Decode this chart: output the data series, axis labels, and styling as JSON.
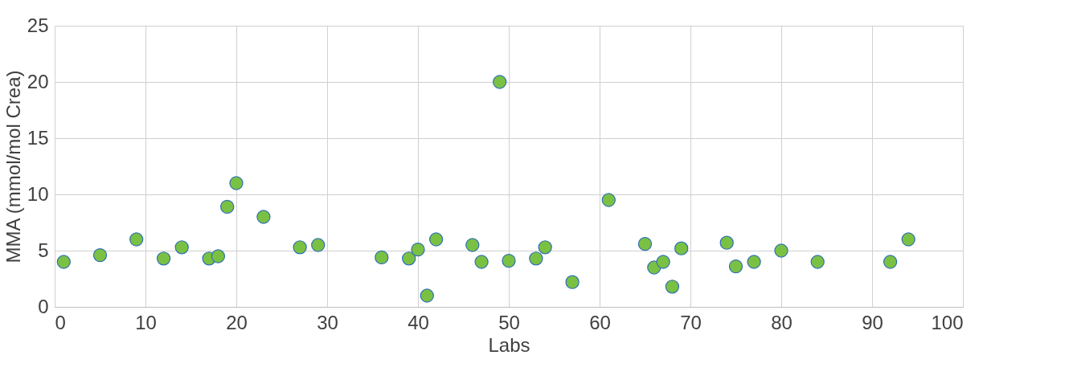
{
  "chart_data": {
    "type": "scatter",
    "xlabel": "Labs",
    "ylabel": "MMA (mmol/mol Crea)",
    "x": [
      1,
      5,
      9,
      12,
      14,
      17,
      18,
      19,
      20,
      23,
      27,
      29,
      36,
      39,
      40,
      41,
      42,
      46,
      47,
      49,
      50,
      53,
      54,
      57,
      61,
      65,
      66,
      67,
      68,
      69,
      74,
      75,
      77,
      80,
      84,
      92,
      94
    ],
    "series": [
      {
        "color": "#7ac143",
        "values": [
          4.0,
          4.6,
          6.0,
          4.3,
          5.3,
          4.3,
          4.5,
          8.9,
          11.0,
          8.0,
          5.3,
          5.5,
          4.4,
          4.3,
          5.1,
          1.0,
          6.0,
          5.5,
          4.0,
          20.0,
          4.1,
          4.3,
          5.3,
          2.2,
          9.5,
          5.6,
          3.5,
          4.0,
          1.8,
          5.2,
          5.7,
          3.6,
          4.0,
          5.0,
          4.0,
          4.0,
          6.0
        ]
      }
    ],
    "xlim": [
      0,
      100
    ],
    "xticks": [
      0,
      10,
      20,
      30,
      40,
      50,
      60,
      70,
      80,
      90,
      100
    ],
    "ylim": [
      0,
      25
    ],
    "yticks": [
      0,
      5,
      10,
      15,
      20,
      25
    ],
    "grid": true,
    "marker": "circle",
    "legend": false
  }
}
